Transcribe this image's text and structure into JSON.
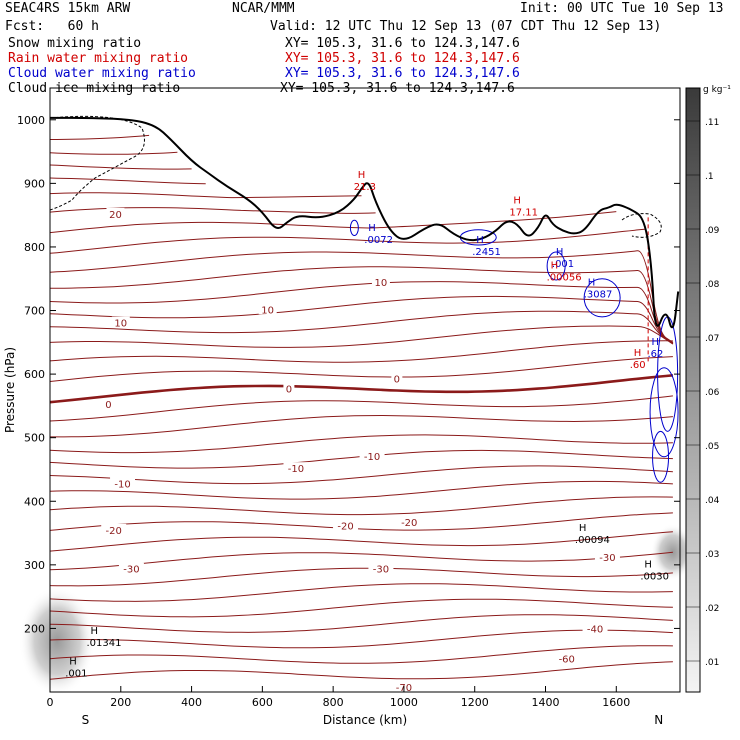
{
  "header": {
    "model": "SEAC4RS 15km ARW",
    "org": "NCAR/MMM",
    "init": "Init: 00 UTC Tue 10 Sep 13",
    "fcst": "Fcst:   60 h",
    "valid": "Valid: 12 UTC Thu 12 Sep 13 (07 CDT Thu 12 Sep 13)",
    "fields": [
      {
        "label": "Snow mixing ratio",
        "xy": "XY= 105.3, 31.6 to 124.3,147.6",
        "color": "#000000"
      },
      {
        "label": "Rain water mixing ratio",
        "xy": "XY= 105.3, 31.6 to 124.3,147.6",
        "color": "#d00000"
      },
      {
        "label": "Cloud water mixing ratio",
        "xy": "XY= 105.3, 31.6 to 124.3,147.6",
        "color": "#0000cc"
      },
      {
        "label": "Cloud ice mixing ratio",
        "xy": "XY= 105.3, 31.6 to 124.3,147.6",
        "color": "#000000"
      }
    ]
  },
  "chart_data": {
    "type": "contour cross-section",
    "xlabel": "Distance (km)",
    "ylabel": "Pressure (hPa)",
    "x_ticks": [
      0,
      200,
      400,
      600,
      800,
      1000,
      1200,
      1400,
      1600
    ],
    "y_ticks": [
      200,
      300,
      400,
      500,
      600,
      700,
      800,
      900,
      1000
    ],
    "xlim": [
      0,
      1780
    ],
    "ylim": [
      1050,
      100
    ],
    "left_end_label": "S",
    "right_end_label": "N",
    "colorbar": {
      "unit": "g kg⁻¹",
      "ticks": [
        ".01",
        ".02",
        ".03",
        ".04",
        ".05",
        ".06",
        ".07",
        ".08",
        ".09",
        ".1",
        ".11"
      ]
    },
    "isotherm_color": "#8b1a1a",
    "temperature_labels": [
      {
        "text": "-70",
        "x": 1000,
        "p": 108
      },
      {
        "text": "-60",
        "x": 1460,
        "p": 153
      },
      {
        "text": "-40",
        "x": 1540,
        "p": 200
      },
      {
        "text": "-30",
        "x": 230,
        "p": 294
      },
      {
        "text": "-30",
        "x": 935,
        "p": 294
      },
      {
        "text": "-30",
        "x": 1575,
        "p": 312
      },
      {
        "text": "-20",
        "x": 180,
        "p": 355
      },
      {
        "text": "-20",
        "x": 835,
        "p": 362
      },
      {
        "text": "-20",
        "x": 1015,
        "p": 367
      },
      {
        "text": "-10",
        "x": 205,
        "p": 428
      },
      {
        "text": "-10",
        "x": 695,
        "p": 452
      },
      {
        "text": "-10",
        "x": 910,
        "p": 471
      },
      {
        "text": "0",
        "x": 165,
        "p": 553
      },
      {
        "text": "0",
        "x": 675,
        "p": 577
      },
      {
        "text": "0",
        "x": 980,
        "p": 593
      },
      {
        "text": "10",
        "x": 200,
        "p": 681
      },
      {
        "text": "10",
        "x": 615,
        "p": 702
      },
      {
        "text": "10",
        "x": 935,
        "p": 745
      },
      {
        "text": "20",
        "x": 185,
        "p": 852
      }
    ],
    "max_labels": [
      {
        "value": ".01341",
        "x": 120,
        "p": 188,
        "color": "#000000"
      },
      {
        "value": ".001",
        "x": 60,
        "p": 140,
        "color": "#000000"
      },
      {
        "value": ".00094",
        "x": 1500,
        "p": 350,
        "color": "#000000"
      },
      {
        "value": ".0030",
        "x": 1685,
        "p": 293,
        "color": "#000000"
      },
      {
        "value": ".0072",
        "x": 905,
        "p": 822,
        "color": "#0000cc"
      },
      {
        "value": ".2451",
        "x": 1210,
        "p": 803,
        "color": "#0000cc"
      },
      {
        "value": ".3087",
        "x": 1525,
        "p": 736,
        "color": "#0000cc"
      },
      {
        "value": ".001",
        "x": 1435,
        "p": 784,
        "color": "#0000cc"
      },
      {
        "value": ".62",
        "x": 1705,
        "p": 643,
        "color": "#0000cc"
      },
      {
        "value": "21.3",
        "x": 875,
        "p": 905,
        "color": "#d00000"
      },
      {
        "value": "17.11",
        "x": 1315,
        "p": 865,
        "color": "#d00000"
      },
      {
        "value": ".00056",
        "x": 1420,
        "p": 763,
        "color": "#d00000"
      },
      {
        "value": ".60",
        "x": 1655,
        "p": 625,
        "color": "#d00000"
      }
    ],
    "terrain": {
      "x": [
        0,
        120,
        240,
        300,
        340,
        400,
        450,
        500,
        560,
        600,
        640,
        670,
        700,
        760,
        820,
        860,
        880,
        900,
        920,
        960,
        1000,
        1060,
        1100,
        1140,
        1180,
        1220,
        1260,
        1290,
        1320,
        1350,
        1380,
        1400,
        1420,
        1450,
        1480,
        1510,
        1550,
        1580,
        1600,
        1640,
        1680,
        1700,
        1710,
        1740,
        1760,
        1775
      ],
      "p": [
        1003,
        1003,
        1000,
        990,
        970,
        935,
        915,
        895,
        875,
        855,
        825,
        839,
        850,
        845,
        855,
        875,
        892,
        905,
        870,
        825,
        808,
        830,
        838,
        820,
        810,
        812,
        825,
        842,
        837,
        813,
        830,
        855,
        835,
        825,
        820,
        825,
        858,
        862,
        868,
        860,
        845,
        770,
        660,
        705,
        660,
        730
      ]
    },
    "fields": [
      "Snow mixing ratio",
      "Rain water mixing ratio",
      "Cloud water mixing ratio",
      "Cloud ice mixing ratio"
    ]
  }
}
